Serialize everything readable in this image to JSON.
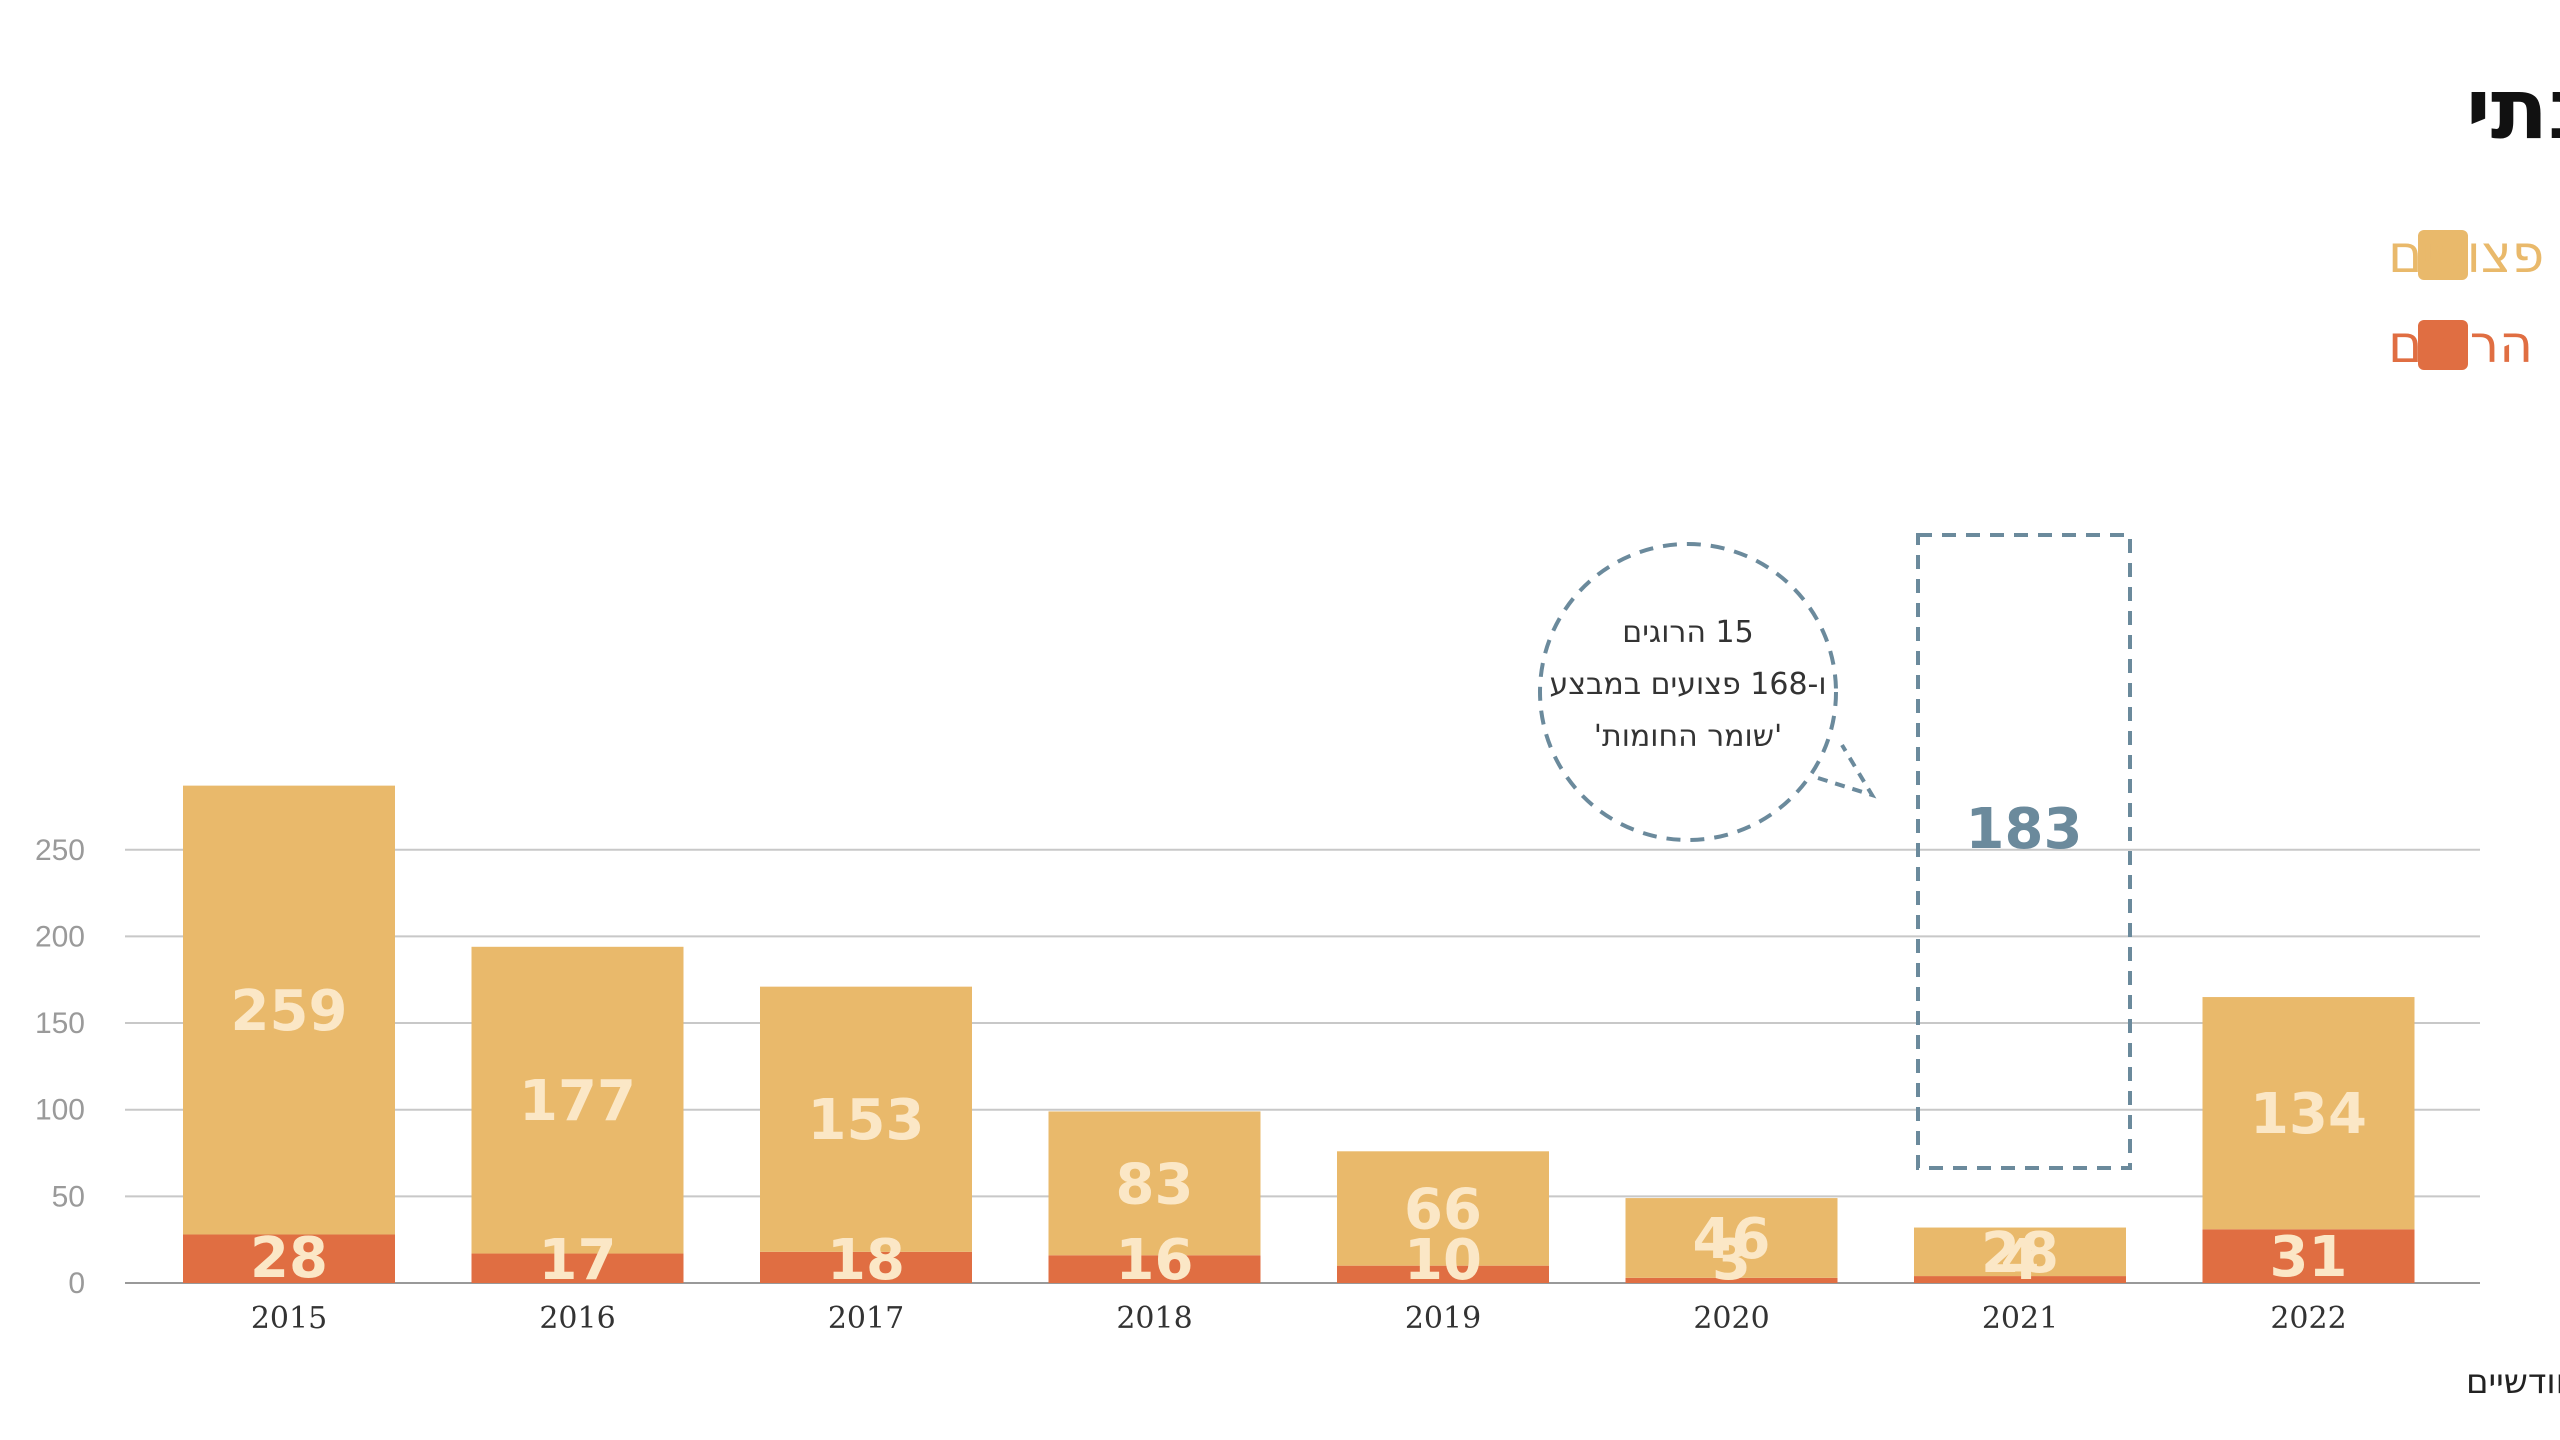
{
  "title": "פצועים והרוגים ישראלים מפעילויות טרור, חתך שנתי",
  "source": "על בסיס נתוני דוחות השב\"כ החודשיים",
  "legend": [
    {
      "label": "פצועים",
      "color": "#e9b96b"
    },
    {
      "label": "הרוגים",
      "color": "#e06e42"
    }
  ],
  "annotation": {
    "lines": [
      "15 הרוגים",
      "ו-168 פצועים במבצע",
      "'שומר החומות'"
    ],
    "total_label": "183"
  },
  "chart_data": {
    "type": "bar",
    "stacked": true,
    "categories": [
      "2015",
      "2016",
      "2017",
      "2018",
      "2019",
      "2020",
      "2021",
      "2022"
    ],
    "series": [
      {
        "name": "הרוגים",
        "color": "#e06e42",
        "values": [
          28,
          17,
          18,
          16,
          10,
          3,
          4,
          31
        ]
      },
      {
        "name": "פצועים",
        "color": "#e9b96b",
        "values": [
          259,
          177,
          153,
          83,
          66,
          46,
          28,
          134
        ]
      }
    ],
    "ylim": [
      0,
      290
    ],
    "yticks": [
      0,
      50,
      100,
      150,
      200,
      250
    ],
    "grid": true,
    "legend_position": "top-right",
    "annotation_2021": {
      "total": 183
    }
  }
}
